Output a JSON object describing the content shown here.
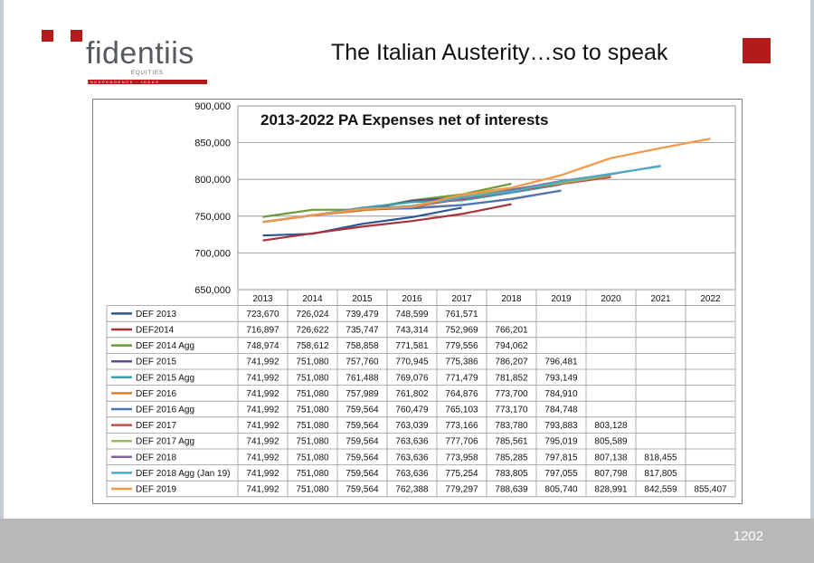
{
  "header": {
    "logo_text": "fidentiis",
    "logo_sub": "EQUITIES",
    "logo_tagline": "INDEPENDENCE · IDEAS",
    "slide_title": "The Italian Austerity…so to speak"
  },
  "footer": {
    "page_number": "1202"
  },
  "colors": {
    "brand_red": "#b31b1b"
  },
  "chart_data": {
    "type": "line",
    "title": "2013-2022 PA Expenses net of interests",
    "categories": [
      "2013",
      "2014",
      "2015",
      "2016",
      "2017",
      "2018",
      "2019",
      "2020",
      "2021",
      "2022"
    ],
    "ylim": [
      650000,
      900000
    ],
    "yticks": [
      "650,000",
      "700,000",
      "750,000",
      "800,000",
      "850,000",
      "900,000"
    ],
    "ytick_values": [
      650000,
      700000,
      750000,
      800000,
      850000,
      900000
    ],
    "grid": true,
    "legend": "data-table-below",
    "series": [
      {
        "name": "DEF 2013",
        "color": "#2e5597",
        "values": [
          723670,
          726024,
          739479,
          748599,
          761571,
          null,
          null,
          null,
          null,
          null
        ],
        "labels": [
          "723,670",
          "726,024",
          "739,479",
          "748,599",
          "761,571",
          "",
          "",
          "",
          "",
          ""
        ]
      },
      {
        "name": "DEF2014",
        "color": "#a8323a",
        "values": [
          716897,
          726622,
          735747,
          743314,
          752969,
          766201,
          null,
          null,
          null,
          null
        ],
        "labels": [
          "716,897",
          "726,622",
          "735,747",
          "743,314",
          "752,969",
          "766,201",
          "",
          "",
          "",
          ""
        ]
      },
      {
        "name": "DEF 2014 Agg",
        "color": "#6e9a3a",
        "values": [
          748974,
          758612,
          758858,
          771581,
          779556,
          794062,
          null,
          null,
          null,
          null
        ],
        "labels": [
          "748,974",
          "758,612",
          "758,858",
          "771,581",
          "779,556",
          "794,062",
          "",
          "",
          "",
          ""
        ]
      },
      {
        "name": "DEF 2015",
        "color": "#5f4b8b",
        "values": [
          741992,
          751080,
          757760,
          770945,
          775386,
          786207,
          796481,
          null,
          null,
          null
        ],
        "labels": [
          "741,992",
          "751,080",
          "757,760",
          "770,945",
          "775,386",
          "786,207",
          "796,481",
          "",
          "",
          ""
        ]
      },
      {
        "name": "DEF 2015 Agg",
        "color": "#3aa0b5",
        "values": [
          741992,
          751080,
          761488,
          769076,
          771479,
          781852,
          793149,
          null,
          null,
          null
        ],
        "labels": [
          "741,992",
          "751,080",
          "761,488",
          "769,076",
          "771,479",
          "781,852",
          "793,149",
          "",
          "",
          ""
        ]
      },
      {
        "name": "DEF 2016",
        "color": "#d9822b",
        "values": [
          741992,
          751080,
          757989,
          761802,
          764876,
          773700,
          784910,
          null,
          null,
          null
        ],
        "labels": [
          "741,992",
          "751,080",
          "757,989",
          "761,802",
          "764,876",
          "773,700",
          "784,910",
          "",
          "",
          ""
        ]
      },
      {
        "name": "DEF 2016 Agg",
        "color": "#4a76b8",
        "values": [
          741992,
          751080,
          759564,
          760479,
          765103,
          773170,
          784748,
          null,
          null,
          null
        ],
        "labels": [
          "741,992",
          "751,080",
          "759,564",
          "760,479",
          "765,103",
          "773,170",
          "784,748",
          "",
          "",
          ""
        ]
      },
      {
        "name": "DEF 2017",
        "color": "#c0504d",
        "values": [
          741992,
          751080,
          759564,
          763039,
          773166,
          783780,
          793883,
          803128,
          null,
          null
        ],
        "labels": [
          "741,992",
          "751,080",
          "759,564",
          "763,039",
          "773,166",
          "783,780",
          "793,883",
          "803,128",
          "",
          ""
        ]
      },
      {
        "name": "DEF 2017 Agg",
        "color": "#9bbb59",
        "values": [
          741992,
          751080,
          759564,
          763636,
          777706,
          785561,
          795019,
          805589,
          null,
          null
        ],
        "labels": [
          "741,992",
          "751,080",
          "759,564",
          "763,636",
          "777,706",
          "785,561",
          "795,019",
          "805,589",
          "",
          ""
        ]
      },
      {
        "name": "DEF 2018",
        "color": "#8064a2",
        "values": [
          741992,
          751080,
          759564,
          763636,
          773958,
          785285,
          797815,
          807138,
          818455,
          null
        ],
        "labels": [
          "741,992",
          "751,080",
          "759,564",
          "763,636",
          "773,958",
          "785,285",
          "797,815",
          "807,138",
          "818,455",
          ""
        ]
      },
      {
        "name": "DEF 2018 Agg (Jan 19)",
        "color": "#4bacc6",
        "values": [
          741992,
          751080,
          759564,
          763636,
          775254,
          783805,
          797055,
          807798,
          817805,
          null
        ],
        "labels": [
          "741,992",
          "751,080",
          "759,564",
          "763,636",
          "775,254",
          "783,805",
          "797,055",
          "807,798",
          "817,805",
          ""
        ]
      },
      {
        "name": "DEF 2019",
        "color": "#f79646",
        "values": [
          741992,
          751080,
          759564,
          762388,
          779297,
          788639,
          805740,
          828991,
          842559,
          855407
        ],
        "labels": [
          "741,992",
          "751,080",
          "759,564",
          "762,388",
          "779,297",
          "788,639",
          "805,740",
          "828,991",
          "842,559",
          "855,407"
        ]
      }
    ]
  }
}
